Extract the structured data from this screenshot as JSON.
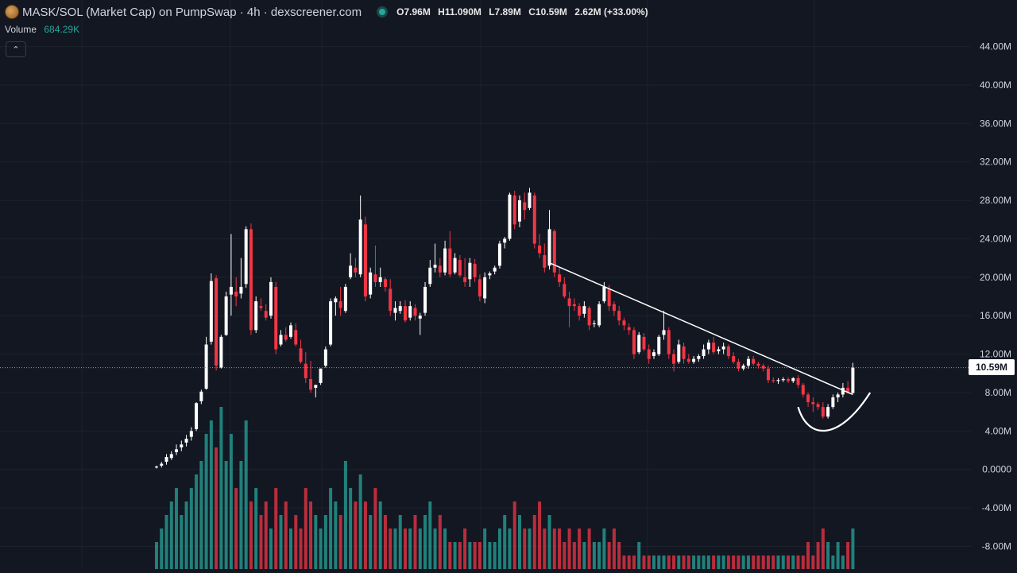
{
  "header": {
    "title": "MASK/SOL (Market Cap) on PumpSwap · 4h · dexscreener.com",
    "open": "O7.96M",
    "high": "H11.090M",
    "low": "L7.89M",
    "close": "C10.59M",
    "change": "2.62M (+33.00%)"
  },
  "volume": {
    "label": "Volume",
    "value": "684.29K"
  },
  "current_price_label": "10.59M",
  "colors": {
    "background": "#131722",
    "up": "#ffffff",
    "down": "#f23645",
    "vol_up": "#26a69a",
    "vol_down": "#f23645",
    "grid": "#1e222d"
  },
  "chart_data": {
    "type": "candlestick",
    "title": "MASK/SOL (Market Cap) on PumpSwap · 4h · dexscreener.com",
    "y_axis": {
      "ticks": [
        "44.00M",
        "40.00M",
        "36.00M",
        "32.00M",
        "28.00M",
        "24.00M",
        "20.00M",
        "16.00M",
        "12.00M",
        "8.00M",
        "4.00M",
        "0.0000",
        "-4.00M",
        "-8.00M"
      ],
      "tick_values": [
        44,
        40,
        36,
        32,
        28,
        24,
        20,
        16,
        12,
        8,
        4,
        0,
        -4,
        -8
      ],
      "unit": "M",
      "ylim": [
        -9.2,
        46.2
      ]
    },
    "grid": true,
    "current_price": 10.59,
    "candles": [
      [
        0,
        0.2,
        0.4,
        0.1,
        0.3
      ],
      [
        0.3,
        0.4,
        0.8,
        0.2,
        0.6
      ],
      [
        0.6,
        0.8,
        1.6,
        0.5,
        1.3
      ],
      [
        1.3,
        1.2,
        1.9,
        1.0,
        1.6
      ],
      [
        1.6,
        1.8,
        2.6,
        1.5,
        2.1
      ],
      [
        2.1,
        2.3,
        3.0,
        1.9,
        2.6
      ],
      [
        2.6,
        2.8,
        3.6,
        2.4,
        3.2
      ],
      [
        3.2,
        3.4,
        4.4,
        3.0,
        4.0
      ],
      [
        4.0,
        4.2,
        7.0,
        4.0,
        6.9
      ],
      [
        6.9,
        7.1,
        8.3,
        6.8,
        8.1
      ],
      [
        8.1,
        8.4,
        13.8,
        8.3,
        13.0
      ],
      [
        13.0,
        13.3,
        20.4,
        13.0,
        19.6
      ],
      [
        19.6,
        19.9,
        20.2,
        10.3,
        10.8
      ],
      [
        10.8,
        10.6,
        14.0,
        10.5,
        13.8
      ],
      [
        13.8,
        14.0,
        18.5,
        13.9,
        18.0
      ],
      [
        18.0,
        18.2,
        24.5,
        16.0,
        19.0
      ],
      [
        19.0,
        18.5,
        20.0,
        17.0,
        18.0
      ],
      [
        18.0,
        18.3,
        22.0,
        17.8,
        19.0
      ],
      [
        19.0,
        19.3,
        25.3,
        18.9,
        25.0
      ],
      [
        25.0,
        25.0,
        25.6,
        14.0,
        14.5
      ],
      [
        14.5,
        14.5,
        18.0,
        14.2,
        17.5
      ],
      [
        17.5,
        17.0,
        17.8,
        16.5,
        16.8
      ],
      [
        16.8,
        16.5,
        17.2,
        15.5,
        15.8
      ],
      [
        15.8,
        16.0,
        20.0,
        15.7,
        19.5
      ],
      [
        19.5,
        19.0,
        19.5,
        12.0,
        12.5
      ],
      [
        12.5,
        13.0,
        14.5,
        12.8,
        14.0
      ],
      [
        14.0,
        14.0,
        14.8,
        13.3,
        13.5
      ],
      [
        13.5,
        13.8,
        15.3,
        13.6,
        15.0
      ],
      [
        15.0,
        14.5,
        15.2,
        12.8,
        13.0
      ],
      [
        13.0,
        12.6,
        13.5,
        11.0,
        11.2
      ],
      [
        11.2,
        11.0,
        12.2,
        9.0,
        9.5
      ],
      [
        9.5,
        9.4,
        11.3,
        8.0,
        8.3
      ],
      [
        8.3,
        8.5,
        8.8,
        7.5,
        8.8
      ],
      [
        8.8,
        9.0,
        10.5,
        8.8,
        10.5
      ],
      [
        10.5,
        10.8,
        12.8,
        10.6,
        12.5
      ],
      [
        12.5,
        13.0,
        17.8,
        12.8,
        17.5
      ],
      [
        17.5,
        17.4,
        18.0,
        16.0,
        17.8
      ],
      [
        17.8,
        17.5,
        19.0,
        16.0,
        16.8
      ],
      [
        16.8,
        16.5,
        19.3,
        16.3,
        19.0
      ],
      [
        19.0,
        20.0,
        22.5,
        19.8,
        21.2
      ],
      [
        21.2,
        21.0,
        22.0,
        20.0,
        20.5
      ],
      [
        20.5,
        20.3,
        28.5,
        20.0,
        26.0
      ],
      [
        26.0,
        25.5,
        26.3,
        17.5,
        18.0
      ],
      [
        18.0,
        18.2,
        21.0,
        17.8,
        20.5
      ],
      [
        20.5,
        20.3,
        23.3,
        19.0,
        19.5
      ],
      [
        19.5,
        19.5,
        21.0,
        19.0,
        20.0
      ],
      [
        20.0,
        19.8,
        20.0,
        18.5,
        19.0
      ],
      [
        19.0,
        18.8,
        19.8,
        16.0,
        16.5
      ],
      [
        16.5,
        16.3,
        17.5,
        15.5,
        16.8
      ],
      [
        16.8,
        16.5,
        17.5,
        16.2,
        17.0
      ],
      [
        17.0,
        17.0,
        17.6,
        15.3,
        15.5
      ],
      [
        15.5,
        15.8,
        17.5,
        15.5,
        17.0
      ],
      [
        17.0,
        16.8,
        17.2,
        15.5,
        16.0
      ],
      [
        16.0,
        15.7,
        16.3,
        14.0,
        16.0
      ],
      [
        16.0,
        16.3,
        19.5,
        16.0,
        19.0
      ],
      [
        19.0,
        19.3,
        21.8,
        19.0,
        21.0
      ],
      [
        21.0,
        21.0,
        23.5,
        20.5,
        21.3
      ],
      [
        21.3,
        21.2,
        22.0,
        20.0,
        20.5
      ],
      [
        20.5,
        20.5,
        23.8,
        20.2,
        23.0
      ],
      [
        23.0,
        23.0,
        24.8,
        20.0,
        20.3
      ],
      [
        20.3,
        20.5,
        22.5,
        20.3,
        22.0
      ],
      [
        22.0,
        21.8,
        22.3,
        20.0,
        20.2
      ],
      [
        20.2,
        20.0,
        22.0,
        19.0,
        19.5
      ],
      [
        19.5,
        19.8,
        22.0,
        19.0,
        21.5
      ],
      [
        21.5,
        21.4,
        21.9,
        19.5,
        20.0
      ],
      [
        20.0,
        19.8,
        20.3,
        17.5,
        18.0
      ],
      [
        18.0,
        17.8,
        20.5,
        17.3,
        20.0
      ],
      [
        20.0,
        20.2,
        20.6,
        19.8,
        20.4
      ],
      [
        20.4,
        20.6,
        21.2,
        20.3,
        21.0
      ],
      [
        21.0,
        21.2,
        23.8,
        20.9,
        23.5
      ],
      [
        23.5,
        23.6,
        24.2,
        23.0,
        24.0
      ],
      [
        24.0,
        24.0,
        28.8,
        23.8,
        28.6
      ],
      [
        28.6,
        28.5,
        29.0,
        25.0,
        25.5
      ],
      [
        25.5,
        25.8,
        28.5,
        25.2,
        28.0
      ],
      [
        28.0,
        27.8,
        28.8,
        26.0,
        27.0
      ],
      [
        27.0,
        27.2,
        29.3,
        27.0,
        28.8
      ],
      [
        28.8,
        28.5,
        28.8,
        23.0,
        23.5
      ],
      [
        23.5,
        23.3,
        24.5,
        22.0,
        22.5
      ],
      [
        22.5,
        22.3,
        23.5,
        20.5,
        21.0
      ],
      [
        21.0,
        21.2,
        27.0,
        20.8,
        25.0
      ],
      [
        25.0,
        24.8,
        25.0,
        20.0,
        20.5
      ],
      [
        20.5,
        20.3,
        21.0,
        19.0,
        19.5
      ],
      [
        19.5,
        19.3,
        20.0,
        17.8,
        18.0
      ],
      [
        18.0,
        17.8,
        18.5,
        14.8,
        17.0
      ],
      [
        17.0,
        17.2,
        17.8,
        16.5,
        17.0
      ],
      [
        17.0,
        17.0,
        17.3,
        15.5,
        16.0
      ],
      [
        16.0,
        16.2,
        17.5,
        15.8,
        17.0
      ],
      [
        17.0,
        16.8,
        17.0,
        14.5,
        15.0
      ],
      [
        15.0,
        15.2,
        15.5,
        14.8,
        15.2
      ],
      [
        15.2,
        15.0,
        17.5,
        14.8,
        17.2
      ],
      [
        17.2,
        17.5,
        19.5,
        17.3,
        19.0
      ],
      [
        19.0,
        18.8,
        19.2,
        16.5,
        17.0
      ],
      [
        17.0,
        17.2,
        17.5,
        16.0,
        16.5
      ],
      [
        16.5,
        16.5,
        17.0,
        15.0,
        15.5
      ],
      [
        15.5,
        15.5,
        15.8,
        14.5,
        15.0
      ],
      [
        15.0,
        14.8,
        15.2,
        14.0,
        14.5
      ],
      [
        14.5,
        14.5,
        14.8,
        11.5,
        12.0
      ],
      [
        12.0,
        12.2,
        14.3,
        12.0,
        14.0
      ],
      [
        14.0,
        13.8,
        14.2,
        12.3,
        12.5
      ],
      [
        12.5,
        12.5,
        13.0,
        11.0,
        11.5
      ],
      [
        11.5,
        11.8,
        12.5,
        11.5,
        12.2
      ],
      [
        12.2,
        12.0,
        14.0,
        11.8,
        13.8
      ],
      [
        13.8,
        14.0,
        16.5,
        13.5,
        14.5
      ],
      [
        14.5,
        14.5,
        14.8,
        11.5,
        12.0
      ],
      [
        12.0,
        12.0,
        12.5,
        10.2,
        11.0
      ],
      [
        11.0,
        11.2,
        13.5,
        11.0,
        13.0
      ],
      [
        13.0,
        12.8,
        13.2,
        11.0,
        11.5
      ],
      [
        11.5,
        11.5,
        12.0,
        11.0,
        11.2
      ],
      [
        11.2,
        11.2,
        11.8,
        11.0,
        11.5
      ],
      [
        11.5,
        11.5,
        12.0,
        11.2,
        11.8
      ],
      [
        11.8,
        11.8,
        13.0,
        11.5,
        12.5
      ],
      [
        12.5,
        12.5,
        13.5,
        12.0,
        13.2
      ],
      [
        13.2,
        13.2,
        13.8,
        12.0,
        12.2
      ],
      [
        12.2,
        12.3,
        12.8,
        12.0,
        12.5
      ],
      [
        12.5,
        12.5,
        13.2,
        12.0,
        12.8
      ],
      [
        12.8,
        12.8,
        13.0,
        11.5,
        11.8
      ],
      [
        11.8,
        11.8,
        12.2,
        11.0,
        11.2
      ],
      [
        11.2,
        11.2,
        11.5,
        10.2,
        10.5
      ],
      [
        10.5,
        10.5,
        11.0,
        10.3,
        10.8
      ],
      [
        10.8,
        10.8,
        11.8,
        10.5,
        11.5
      ],
      [
        11.5,
        11.5,
        11.8,
        10.8,
        11.0
      ],
      [
        11.0,
        11.0,
        11.2,
        10.5,
        10.8
      ],
      [
        10.8,
        10.8,
        11.0,
        10.2,
        10.5
      ],
      [
        10.5,
        10.5,
        10.8,
        9.0,
        9.3
      ],
      [
        9.3,
        9.3,
        9.6,
        9.0,
        9.2
      ],
      [
        9.2,
        9.2,
        9.5,
        8.9,
        9.3
      ],
      [
        9.3,
        9.3,
        9.6,
        9.1,
        9.4
      ],
      [
        9.4,
        9.4,
        9.6,
        9.0,
        9.2
      ],
      [
        9.2,
        9.2,
        9.6,
        9.0,
        9.5
      ],
      [
        9.5,
        9.5,
        9.8,
        8.5,
        8.8
      ],
      [
        8.8,
        8.8,
        9.0,
        7.5,
        7.8
      ],
      [
        7.8,
        7.8,
        8.0,
        6.5,
        7.0
      ],
      [
        7.0,
        7.0,
        7.5,
        6.0,
        6.8
      ],
      [
        6.8,
        6.8,
        7.0,
        6.2,
        6.5
      ],
      [
        6.5,
        6.5,
        7.0,
        5.3,
        5.5
      ],
      [
        5.5,
        5.5,
        6.8,
        5.3,
        6.5
      ],
      [
        6.5,
        6.5,
        7.8,
        6.3,
        7.5
      ],
      [
        7.5,
        7.5,
        8.0,
        7.0,
        7.8
      ],
      [
        7.8,
        7.8,
        9.0,
        7.5,
        8.5
      ],
      [
        8.5,
        8.5,
        9.2,
        7.9,
        7.96
      ],
      [
        7.96,
        7.96,
        11.09,
        7.89,
        10.59
      ]
    ],
    "volume_bars": [
      2,
      3,
      4,
      5,
      6,
      4,
      5,
      6,
      7,
      8,
      10,
      11,
      9,
      12,
      8,
      10,
      6,
      8,
      11,
      5,
      6,
      4,
      5,
      3,
      6,
      4,
      5,
      3,
      4,
      3,
      6,
      5,
      4,
      3,
      4,
      6,
      5,
      4,
      8,
      6,
      5,
      7,
      5,
      4,
      6,
      5,
      4,
      3,
      3,
      4,
      3,
      3,
      4,
      3,
      4,
      5,
      3,
      4,
      3,
      2,
      2,
      2,
      3,
      2,
      2,
      2,
      3,
      2,
      2,
      3,
      4,
      3,
      5,
      4,
      3,
      3,
      4,
      5,
      3,
      4,
      3,
      3,
      2,
      3,
      2,
      3,
      2,
      3,
      2,
      2,
      3,
      2,
      3,
      2,
      1,
      1,
      1,
      2,
      1,
      1,
      1,
      1,
      1,
      1,
      1,
      1,
      1,
      1,
      1,
      1,
      1,
      1,
      1,
      1,
      1,
      1,
      1,
      1,
      1,
      1,
      1,
      1,
      1,
      1,
      1,
      1,
      1,
      1,
      1,
      1,
      1,
      2,
      1,
      2,
      3,
      2,
      1,
      2,
      1,
      2,
      3
    ],
    "annotations": {
      "trendline": {
        "start": [
          0,
          21.5
        ],
        "end": [
          0,
          7.8
        ],
        "start_candle": 79,
        "end_candle": 140
      },
      "cup_curve": true
    }
  }
}
